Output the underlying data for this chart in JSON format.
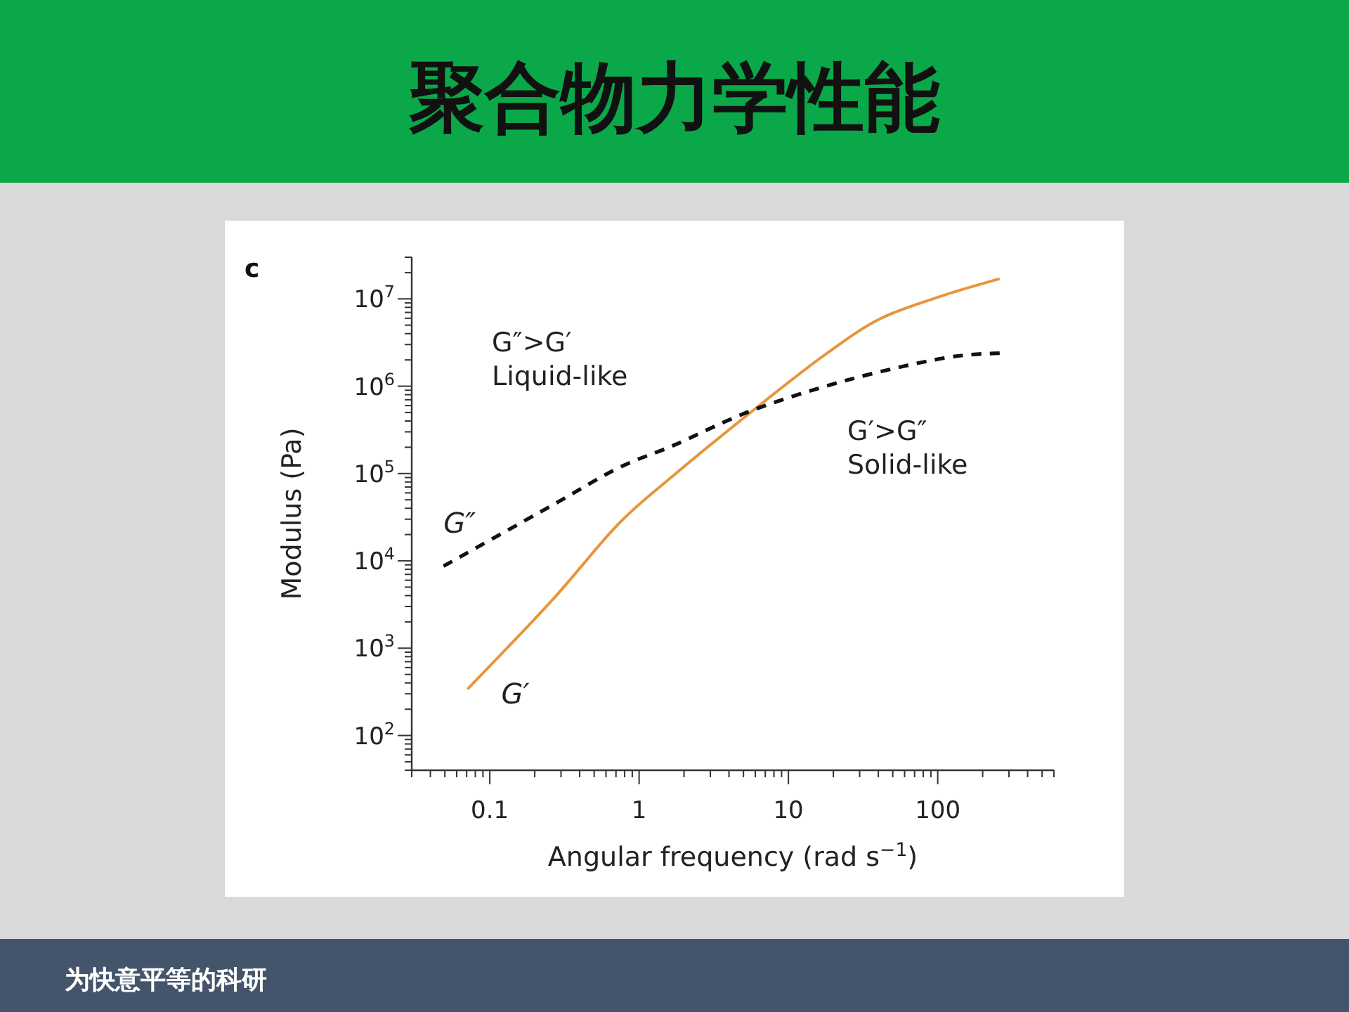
{
  "chart_data": {
    "type": "line",
    "title": "聚合物力学性能",
    "xlabel": "Angular frequency (rad s$^{−1}$)",
    "ylabel": "Modulus (Pa)",
    "log": "xy",
    "grid": false,
    "xlim": [
      0.03,
      600
    ],
    "xticks": [
      0.1,
      1,
      10,
      100
    ],
    "ylim": [
      40,
      30000000
    ],
    "yticks": [
      {
        "value": 100,
        "label": "10$^{2}$"
      },
      {
        "value": 1000,
        "label": "10$^{3}$"
      },
      {
        "value": 10000,
        "label": "10$^{4}$"
      },
      {
        "value": 100000,
        "label": "10$^{5}$"
      },
      {
        "value": 1000000,
        "label": "10$^{6}$"
      },
      {
        "value": 10000000,
        "label": "10$^{7}$"
      }
    ],
    "series": [
      {
        "name": "G′",
        "color": "#e8953a",
        "line_style": "solid",
        "x": [
          0.071,
          0.26,
          0.72,
          1.7,
          5.9,
          17,
          41,
          110,
          260
        ],
        "values": [
          340,
          3500,
          26000,
          95000,
          540000,
          2200000,
          5900000,
          11000000,
          17000000
        ]
      },
      {
        "name": "G″",
        "color": "#111111",
        "line_style": "dashed",
        "x": [
          0.049,
          0.26,
          0.72,
          1.7,
          5.9,
          26,
          110,
          260
        ],
        "values": [
          8700,
          43000,
          115000,
          210000,
          540000,
          1200000,
          2100000,
          2400000
        ]
      }
    ],
    "annotations": [
      "c",
      "G″>G′\nLiquid-like",
      "G′>G″\nSolid-like",
      "为快意平等的科研"
    ]
  }
}
